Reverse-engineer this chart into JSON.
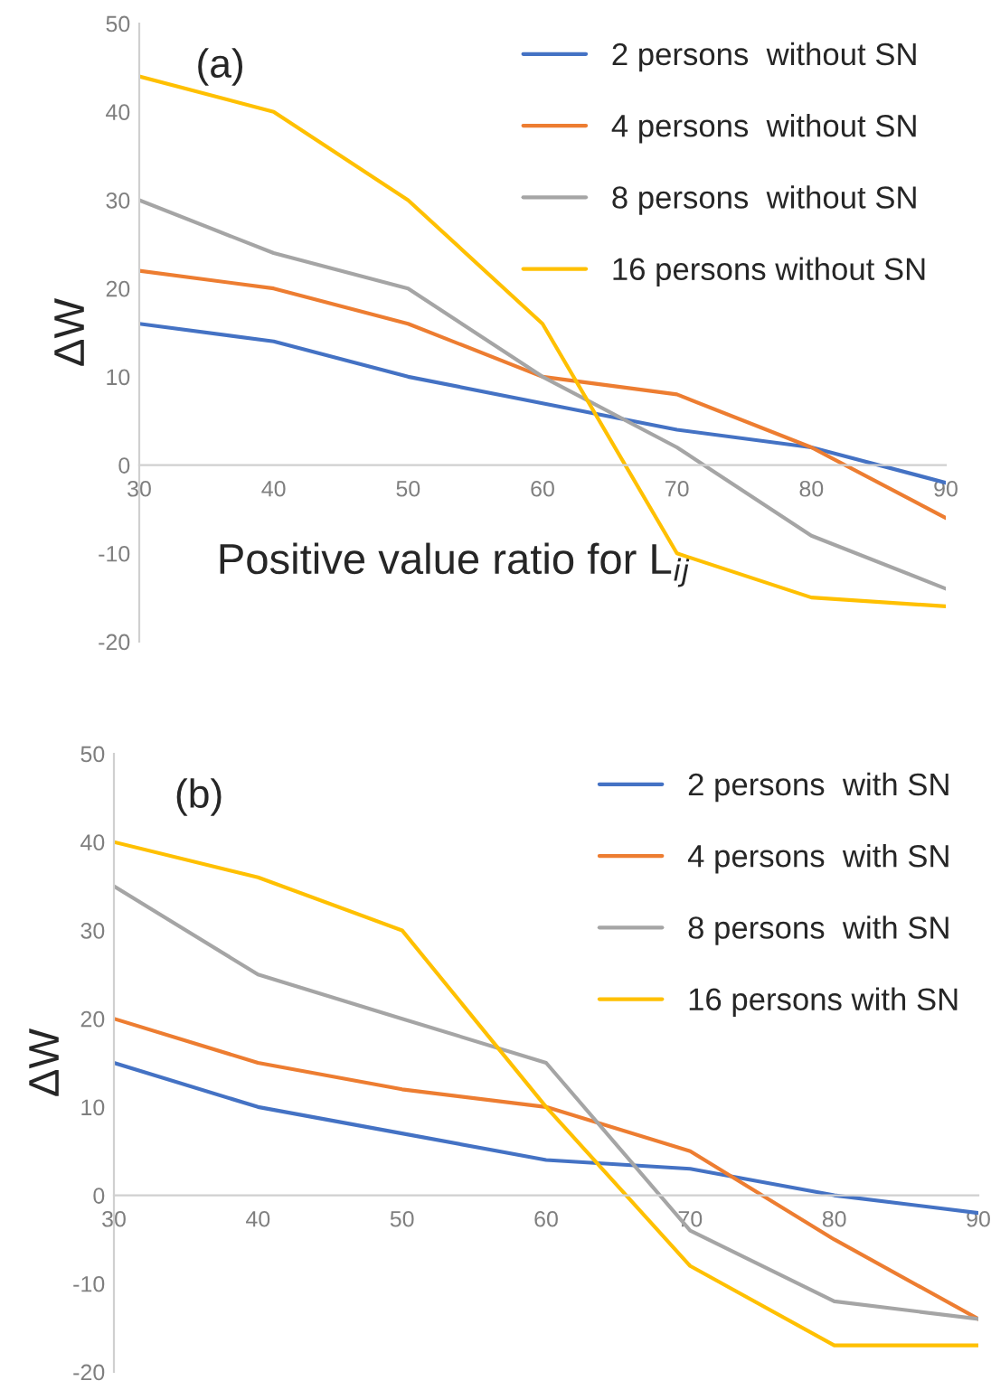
{
  "chart_data": [
    {
      "type": "line",
      "annotations": [
        "(a)"
      ],
      "xlabel": "Positive value ratio for L$_{ij}$",
      "ylabel": "ΔW",
      "x": [
        30,
        40,
        50,
        60,
        70,
        80,
        90
      ],
      "xlim": [
        30,
        90
      ],
      "xticks": [
        30,
        40,
        50,
        60,
        70,
        80,
        90
      ],
      "ylim": [
        -20,
        50
      ],
      "yticks": [
        -20,
        -10,
        0,
        10,
        20,
        30,
        40,
        50
      ],
      "grid": false,
      "legend": "top right",
      "series": [
        {
          "name": "2 persons  without SN",
          "color": "#4472c4",
          "values": [
            16,
            14,
            10,
            7,
            4,
            2,
            -2
          ]
        },
        {
          "name": "4 persons  without SN",
          "color": "#ed7d31",
          "values": [
            22,
            20,
            16,
            10,
            8,
            2,
            -6
          ]
        },
        {
          "name": "8 persons  without SN",
          "color": "#a5a5a5",
          "values": [
            30,
            24,
            20,
            10,
            2,
            -8,
            -14
          ]
        },
        {
          "name": "16 persons without SN",
          "color": "#ffc000",
          "values": [
            44,
            40,
            30,
            16,
            -10,
            -15,
            -16
          ]
        }
      ]
    },
    {
      "type": "line",
      "annotations": [
        "(b)"
      ],
      "ylabel": "ΔW",
      "x": [
        30,
        40,
        50,
        60,
        70,
        80,
        90
      ],
      "xlim": [
        30,
        90
      ],
      "xticks": [
        30,
        40,
        50,
        60,
        70,
        80,
        90
      ],
      "ylim": [
        -20,
        50
      ],
      "yticks": [
        -20,
        -10,
        0,
        10,
        20,
        30,
        40,
        50
      ],
      "grid": false,
      "legend": "top right",
      "series": [
        {
          "name": "2 persons  with SN",
          "color": "#4472c4",
          "values": [
            15,
            10,
            7,
            4,
            3,
            0,
            -2
          ]
        },
        {
          "name": "4 persons  with SN",
          "color": "#ed7d31",
          "values": [
            20,
            15,
            12,
            10,
            5,
            -5,
            -14
          ]
        },
        {
          "name": "8 persons  with SN",
          "color": "#a5a5a5",
          "values": [
            35,
            25,
            20,
            15,
            -4,
            -12,
            -14
          ]
        },
        {
          "name": "16 persons with SN",
          "color": "#ffc000",
          "values": [
            40,
            36,
            30,
            10,
            -8,
            -17,
            -17
          ]
        }
      ]
    }
  ]
}
